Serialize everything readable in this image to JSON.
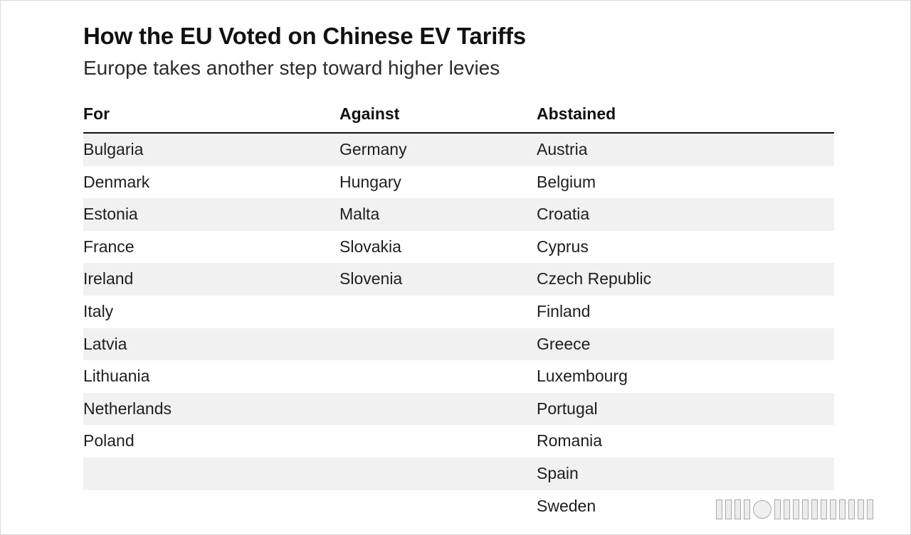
{
  "chart_data": {
    "type": "table",
    "title": "How the EU Voted on Chinese EV Tariffs",
    "subtitle": "Europe takes another step toward higher levies",
    "columns": [
      "For",
      "Against",
      "Abstained"
    ],
    "rows": [
      [
        "Bulgaria",
        "Germany",
        "Austria"
      ],
      [
        "Denmark",
        "Hungary",
        "Belgium"
      ],
      [
        "Estonia",
        "Malta",
        "Croatia"
      ],
      [
        "France",
        "Slovakia",
        "Cyprus"
      ],
      [
        "Ireland",
        "Slovenia",
        "Czech Republic"
      ],
      [
        "Italy",
        "",
        "Finland"
      ],
      [
        "Latvia",
        "",
        "Greece"
      ],
      [
        "Lithuania",
        "",
        "Luxembourg"
      ],
      [
        "Netherlands",
        "",
        "Portugal"
      ],
      [
        "Poland",
        "",
        "Romania"
      ],
      [
        "",
        "",
        "Spain"
      ],
      [
        "",
        "",
        "Sweden"
      ]
    ],
    "row_shading": "alternating"
  }
}
